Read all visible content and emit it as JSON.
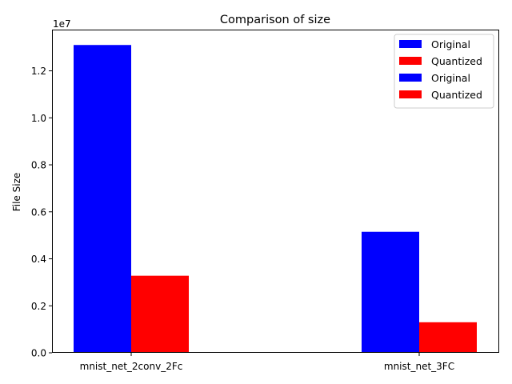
{
  "chart_data": {
    "type": "bar",
    "title": "Comparison of size",
    "xlabel": "",
    "ylabel": "File Size",
    "offset_label": "1e7",
    "categories": [
      "mnist_net_2conv_2Fc",
      "mnist_net_3FC"
    ],
    "series": [
      {
        "name": "Original",
        "color": "#0000ff",
        "values": [
          13100000,
          5150000
        ]
      },
      {
        "name": "Quantized",
        "color": "#ff0000",
        "values": [
          3280000,
          1300000
        ]
      }
    ],
    "legend_entries": [
      {
        "name": "Original",
        "color": "#0000ff"
      },
      {
        "name": "Quantized",
        "color": "#ff0000"
      },
      {
        "name": "Original",
        "color": "#0000ff"
      },
      {
        "name": "Quantized",
        "color": "#ff0000"
      }
    ],
    "y_ticks": [
      0,
      2000000,
      4000000,
      6000000,
      8000000,
      10000000,
      12000000
    ],
    "y_tick_labels": [
      "0.0",
      "0.2",
      "0.4",
      "0.6",
      "0.8",
      "1.0",
      "1.2"
    ],
    "ylim": [
      0,
      13755000
    ],
    "legend_position": "upper-right",
    "grid": false
  }
}
